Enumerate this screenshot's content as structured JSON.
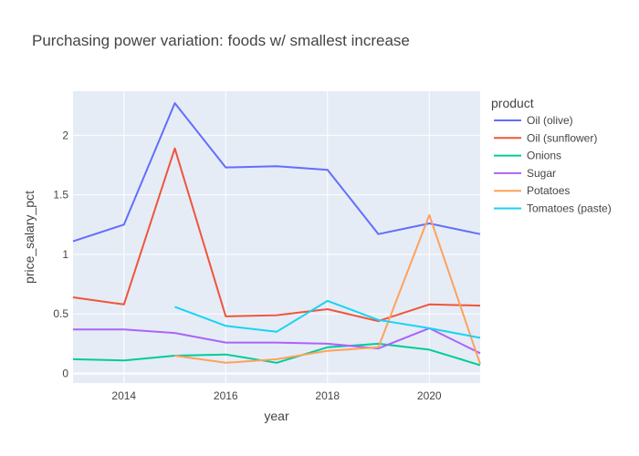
{
  "chart_data": {
    "type": "line",
    "title": "Purchasing power variation: foods w/ smallest increase",
    "xlabel": "year",
    "ylabel": "price_salary_pct",
    "xlim": [
      2013,
      2021
    ],
    "ylim": [
      -0.08,
      2.37
    ],
    "x_ticks": [
      2014,
      2016,
      2018,
      2020
    ],
    "y_ticks": [
      0,
      0.5,
      1,
      1.5,
      2
    ],
    "x_tick_labels": [
      "2014",
      "2016",
      "2018",
      "2020"
    ],
    "y_tick_labels": [
      "0",
      "0.5",
      "1",
      "1.5",
      "2"
    ],
    "grid": true,
    "plot_background": "#e5ecf6",
    "legend": {
      "title": "product",
      "position": "right"
    },
    "series": [
      {
        "name": "Oil (olive)",
        "color": "#636efa",
        "x": [
          2013,
          2014,
          2015,
          2016,
          2017,
          2018,
          2019,
          2020,
          2021
        ],
        "y": [
          1.11,
          1.25,
          2.27,
          1.73,
          1.74,
          1.71,
          1.17,
          1.26,
          1.17
        ]
      },
      {
        "name": "Oil (sunflower)",
        "color": "#ef553b",
        "x": [
          2013,
          2014,
          2015,
          2016,
          2017,
          2018,
          2019,
          2020,
          2021
        ],
        "y": [
          0.64,
          0.58,
          1.89,
          0.48,
          0.49,
          0.54,
          0.44,
          0.58,
          0.57
        ]
      },
      {
        "name": "Onions",
        "color": "#00cc96",
        "x": [
          2013,
          2014,
          2015,
          2016,
          2017,
          2018,
          2019,
          2020,
          2021
        ],
        "y": [
          0.12,
          0.11,
          0.15,
          0.16,
          0.09,
          0.22,
          0.25,
          0.2,
          0.07
        ]
      },
      {
        "name": "Sugar",
        "color": "#ab63fa",
        "x": [
          2013,
          2014,
          2015,
          2016,
          2017,
          2018,
          2019,
          2020,
          2021
        ],
        "y": [
          0.37,
          0.37,
          0.34,
          0.26,
          0.26,
          0.25,
          0.21,
          0.38,
          0.17
        ]
      },
      {
        "name": "Potatoes",
        "color": "#ffa15a",
        "x": [
          2015,
          2016,
          2017,
          2018,
          2019,
          2020,
          2021
        ],
        "y": [
          0.15,
          0.09,
          0.12,
          0.19,
          0.22,
          1.33,
          0.08
        ]
      },
      {
        "name": "Tomatoes (paste)",
        "color": "#19d3f3",
        "x": [
          2015,
          2016,
          2017,
          2018,
          2019,
          2020,
          2021
        ],
        "y": [
          0.56,
          0.4,
          0.35,
          0.61,
          0.45,
          0.38,
          0.3
        ]
      }
    ]
  }
}
